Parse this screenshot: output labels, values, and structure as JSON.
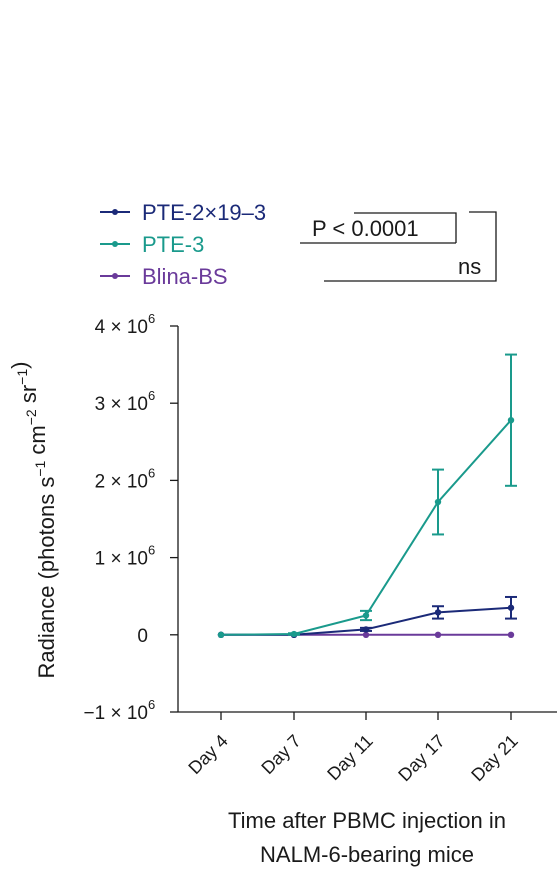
{
  "chart_data": {
    "type": "line",
    "categories": [
      "Day 4",
      "Day 7",
      "Day 11",
      "Day 17",
      "Day 21"
    ],
    "ylabel": "Radiance (photons s⁻¹ cm⁻² sr⁻¹)",
    "xlabel": [
      "Time after PBMC injection in",
      "NALM-6-bearing mice"
    ],
    "ylim": [
      -1000000,
      4000000
    ],
    "yticks": [
      {
        "value": 4000000,
        "label": "4 × 10",
        "exp": "6"
      },
      {
        "value": 3000000,
        "label": "3 × 10",
        "exp": "6"
      },
      {
        "value": 2000000,
        "label": "2 × 10",
        "exp": "6"
      },
      {
        "value": 1000000,
        "label": "1 × 10",
        "exp": "6"
      },
      {
        "value": 0,
        "label": "0",
        "exp": ""
      },
      {
        "value": -1000000,
        "label": "−1 × 10",
        "exp": "6"
      }
    ],
    "series": [
      {
        "name": "PTE-3",
        "color": "#1a9a8c",
        "values": [
          0,
          10000,
          250000,
          1720000,
          2780000
        ],
        "errors": [
          0,
          10000,
          60000,
          420000,
          850000
        ]
      },
      {
        "name": "PTE-2×19–3",
        "color": "#1b2a78",
        "values": [
          0,
          0,
          70000,
          290000,
          350000
        ],
        "errors": [
          0,
          0,
          20000,
          80000,
          140000
        ]
      },
      {
        "name": "Blina-BS",
        "color": "#6a3a9a",
        "values": [
          0,
          0,
          0,
          0,
          0
        ],
        "errors": [
          0,
          0,
          0,
          0,
          0
        ]
      }
    ],
    "legend_position": "top-left",
    "annotations": [
      {
        "text": "P < 0.0001",
        "compare": [
          "PTE-2×19–3",
          "PTE-3"
        ]
      },
      {
        "text": "ns",
        "compare": [
          "PTE-2×19–3",
          "Blina-BS"
        ]
      }
    ],
    "grid": false
  }
}
